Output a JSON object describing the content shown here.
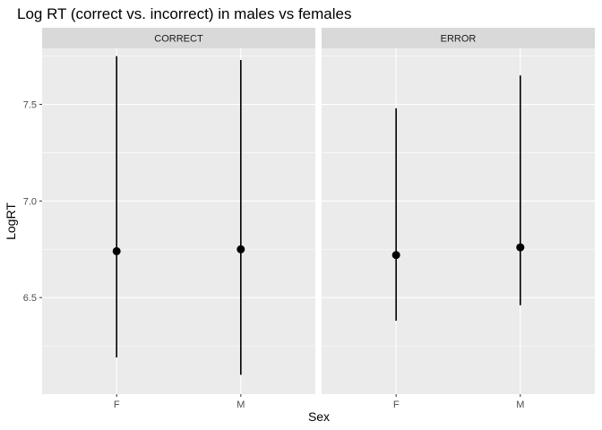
{
  "chart_data": {
    "type": "scatter",
    "title": "Log RT (correct vs. incorrect) in males vs females",
    "xlabel": "Sex",
    "ylabel": "LogRT",
    "categories": [
      "F",
      "M"
    ],
    "ylim": [
      6.0,
      7.79
    ],
    "y_ticks": [
      6.5,
      7.0,
      7.5
    ],
    "y_tick_labels": [
      "6.5",
      "7.0",
      "7.5"
    ],
    "grid": true,
    "panels": [
      {
        "label": "CORRECT",
        "points": [
          {
            "x": "F",
            "y": 6.74,
            "ymin": 6.19,
            "ymax": 7.75
          },
          {
            "x": "M",
            "y": 6.75,
            "ymin": 6.1,
            "ymax": 7.73
          }
        ]
      },
      {
        "label": "ERROR",
        "points": [
          {
            "x": "F",
            "y": 6.72,
            "ymin": 6.38,
            "ymax": 7.48
          },
          {
            "x": "M",
            "y": 6.76,
            "ymin": 6.46,
            "ymax": 7.65
          }
        ]
      }
    ],
    "colors": {
      "panel_bg": "#ebebeb",
      "strip_bg": "#d9d9d9",
      "grid": "#ffffff",
      "point": "#000000",
      "text": "#4d4d4d"
    }
  }
}
